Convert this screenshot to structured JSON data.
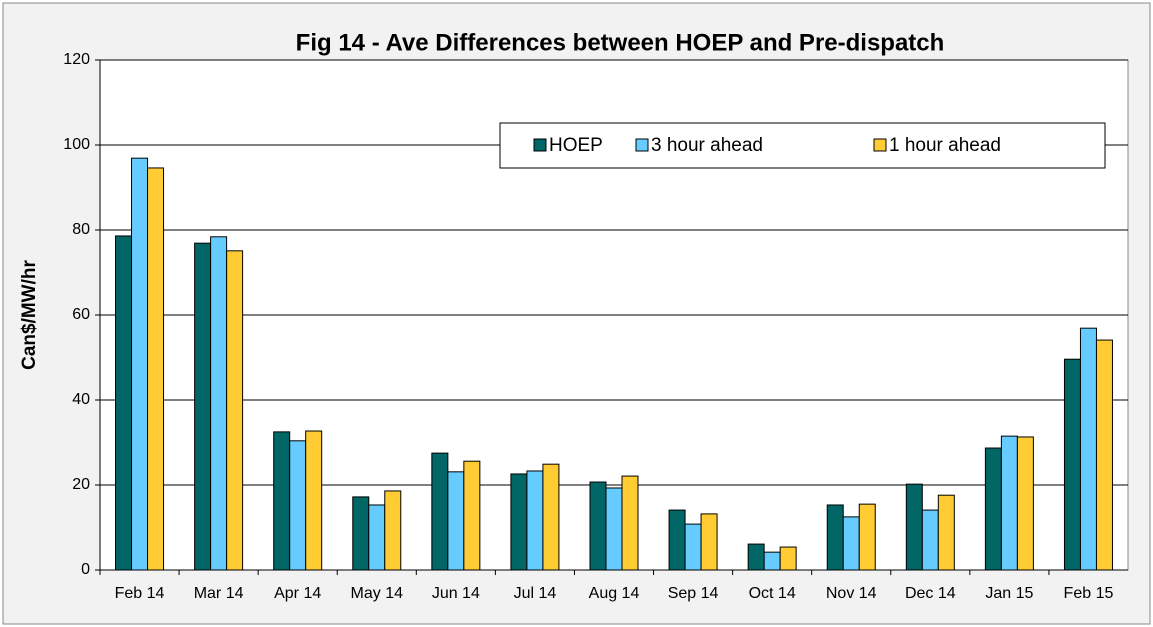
{
  "chart_data": {
    "type": "bar",
    "title": "Fig 14 - Ave Differences between HOEP and Pre-dispatch",
    "y_label": "Can$/MW/hr",
    "categories": [
      "Feb 14",
      "Mar 14",
      "Apr 14",
      "May 14",
      "Jun 14",
      "Jul 14",
      "Aug 14",
      "Sep 14",
      "Oct 14",
      "Nov 14",
      "Dec 14",
      "Jan 15",
      "Feb 15"
    ],
    "series": [
      {
        "name": "HOEP",
        "color": "#006666",
        "values": [
          78.6,
          76.9,
          32.5,
          17.2,
          27.5,
          22.6,
          20.7,
          14.1,
          6.1,
          15.3,
          20.2,
          28.7,
          49.6
        ]
      },
      {
        "name": "3 hour ahead",
        "color": "#66ccff",
        "values": [
          96.9,
          78.4,
          30.4,
          15.3,
          23.1,
          23.3,
          19.3,
          10.8,
          4.2,
          12.5,
          14.1,
          31.5,
          56.9
        ]
      },
      {
        "name": "1 hour ahead",
        "color": "#ffcc33",
        "values": [
          94.6,
          75.1,
          32.7,
          18.6,
          25.6,
          24.9,
          22.1,
          13.2,
          5.4,
          15.5,
          17.6,
          31.3,
          54.1
        ]
      }
    ],
    "ylim": [
      0,
      120
    ],
    "yticks": [
      0,
      20,
      40,
      60,
      80,
      100,
      120
    ],
    "grid": true,
    "legend": "top-right"
  }
}
